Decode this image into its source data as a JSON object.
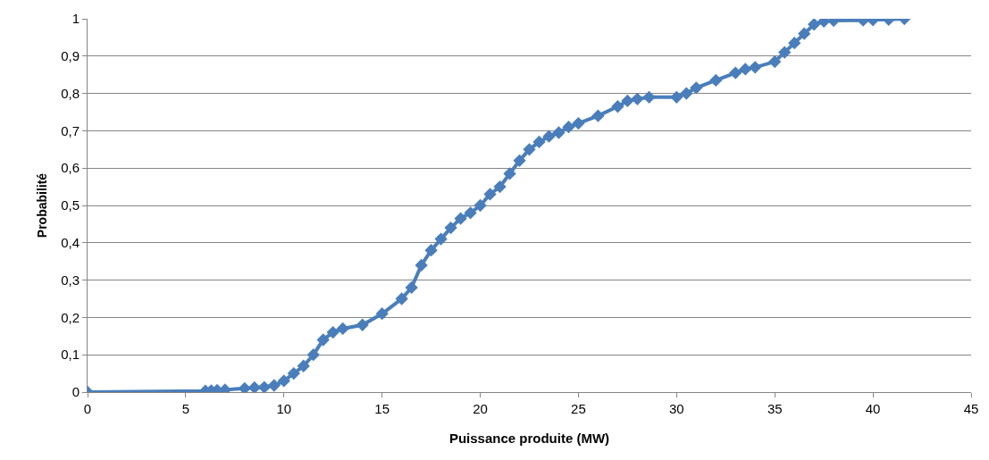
{
  "chart_data": {
    "type": "line",
    "xlabel": "Puissance produite (MW)",
    "ylabel": "Probabilité",
    "xlim": [
      0,
      45
    ],
    "xticks": [
      0,
      5,
      10,
      15,
      20,
      25,
      30,
      35,
      40,
      45
    ],
    "ylim": [
      0,
      1
    ],
    "yticks": [
      0,
      {
        "value": 0.1,
        "label": "0,1"
      },
      {
        "value": 0.2,
        "label": "0,2"
      },
      {
        "value": 0.3,
        "label": "0,3"
      },
      {
        "value": 0.4,
        "label": "0,4"
      },
      {
        "value": 0.5,
        "label": "0,5"
      },
      {
        "value": 0.6,
        "label": "0,6"
      },
      {
        "value": 0.7,
        "label": "0,7"
      },
      {
        "value": 0.8,
        "label": "0,8"
      },
      {
        "value": 0.9,
        "label": "0,9"
      },
      1
    ],
    "grid": "y",
    "marker": "diamond",
    "line_style": "solid",
    "series": [
      {
        "color": "#4a7ebb",
        "x": [
          0,
          6,
          6.3,
          6.6,
          7,
          8,
          8.5,
          9,
          9.5,
          10,
          10.5,
          11,
          11.5,
          12,
          12.5,
          13,
          14,
          15,
          16,
          16.5,
          17,
          17.5,
          18,
          18.5,
          19,
          19.5,
          20,
          20.5,
          21,
          21.5,
          22,
          22.5,
          23,
          23.5,
          24,
          24.5,
          25,
          26,
          27,
          27.5,
          28,
          28.6,
          30,
          30.5,
          31,
          32,
          33,
          33.5,
          34,
          35,
          35.5,
          36,
          36.5,
          37,
          37.5,
          38,
          39.5,
          40,
          40.8,
          41.6
        ],
        "values": [
          0,
          0.003,
          0.004,
          0.005,
          0.006,
          0.01,
          0.012,
          0.013,
          0.018,
          0.03,
          0.05,
          0.07,
          0.1,
          0.14,
          0.16,
          0.17,
          0.18,
          0.21,
          0.25,
          0.28,
          0.34,
          0.38,
          0.41,
          0.44,
          0.465,
          0.48,
          0.5,
          0.53,
          0.55,
          0.585,
          0.62,
          0.65,
          0.67,
          0.685,
          0.695,
          0.71,
          0.72,
          0.74,
          0.765,
          0.78,
          0.785,
          0.79,
          0.79,
          0.8,
          0.815,
          0.835,
          0.855,
          0.865,
          0.87,
          0.885,
          0.91,
          0.935,
          0.96,
          0.985,
          0.993,
          0.995,
          0.996,
          0.997,
          0.998,
          1.0
        ]
      }
    ]
  }
}
